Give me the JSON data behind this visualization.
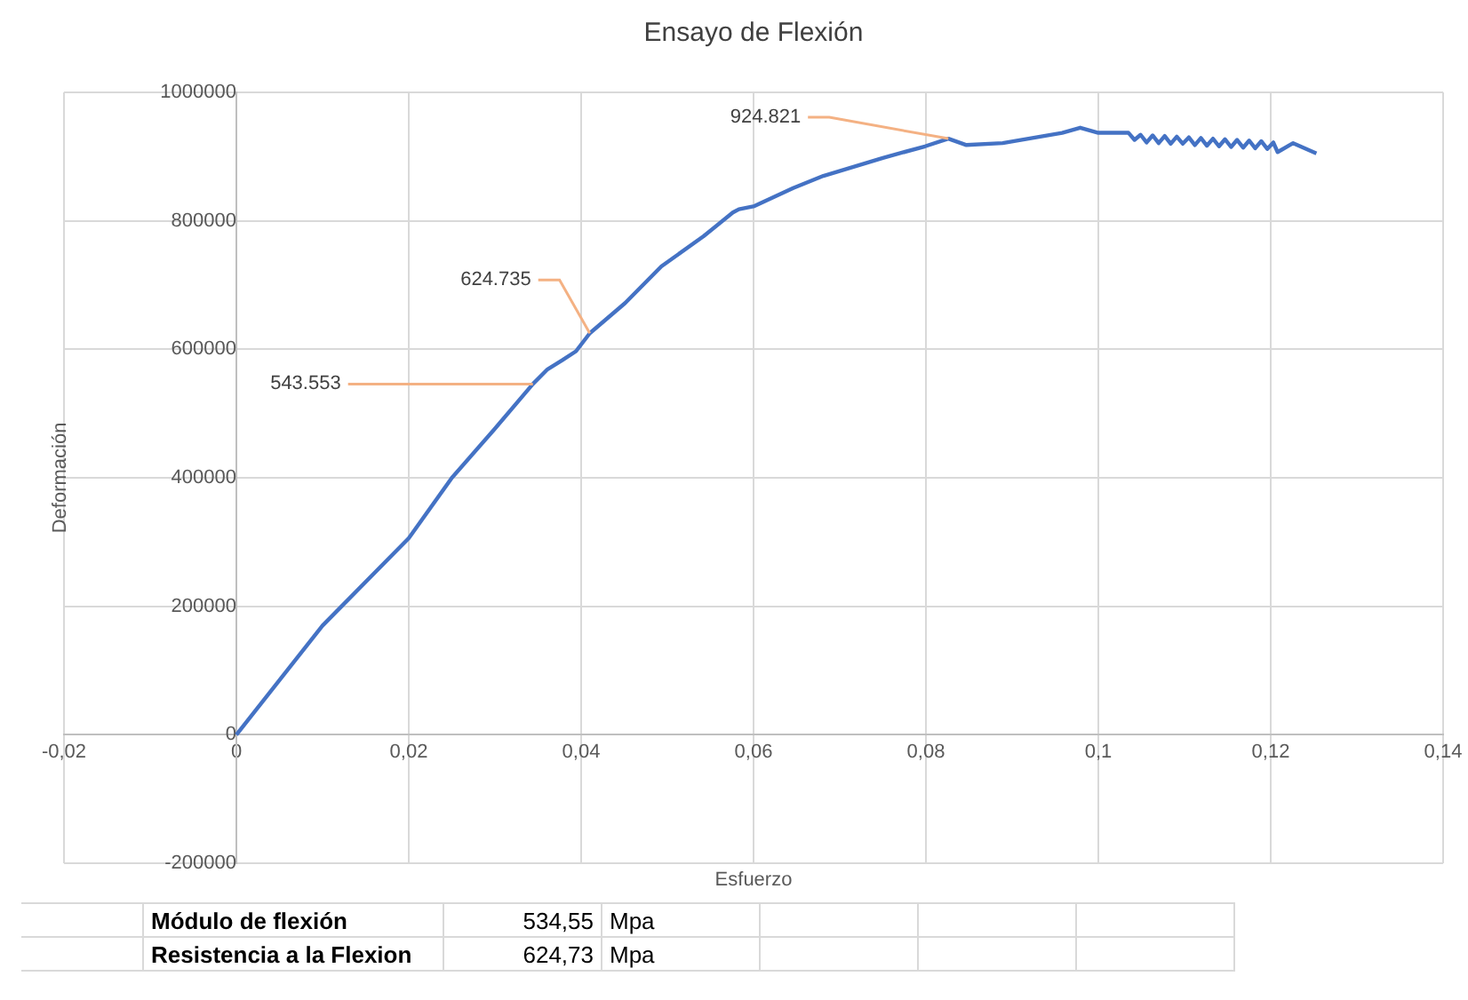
{
  "chart_data": {
    "type": "line",
    "title": "Ensayo de Flexión",
    "xlabel": "Esfuerzo",
    "ylabel": "Deformación",
    "x": [
      0,
      0.01,
      0.02,
      0.025,
      0.0299,
      0.0344,
      0.0361,
      0.0378,
      0.0394,
      0.041,
      0.0451,
      0.0493,
      0.0542,
      0.0576,
      0.0583,
      0.0601,
      0.0646,
      0.0681,
      0.075,
      0.0799,
      0.0826,
      0.0847,
      0.0889,
      0.0958,
      0.0979,
      0.1,
      0.1035,
      0.1042,
      0.1049,
      0.1056,
      0.1063,
      0.107,
      0.1077,
      0.1084,
      0.1091,
      0.1098,
      0.1105,
      0.1112,
      0.1119,
      0.1126,
      0.1133,
      0.114,
      0.1147,
      0.1154,
      0.1161,
      0.1168,
      0.1175,
      0.1182,
      0.1189,
      0.1196,
      0.1203,
      0.1208,
      0.1226,
      0.1253
    ],
    "series": [
      {
        "color": "#4472c4",
        "values": [
          0,
          170000,
          306000,
          400000,
          475000,
          546000,
          569000,
          583000,
          597000,
          625000,
          672000,
          729000,
          776000,
          813000,
          818000,
          823000,
          851000,
          870000,
          898000,
          916000,
          928000,
          918000,
          921000,
          937000,
          945000,
          937000,
          937000,
          926000,
          934000,
          922000,
          933000,
          921000,
          932000,
          920000,
          931000,
          920000,
          930000,
          918000,
          929000,
          917000,
          928000,
          916000,
          927000,
          915000,
          926000,
          914000,
          925000,
          913000,
          924000,
          912000,
          922000,
          907000,
          921000,
          905000
        ]
      }
    ],
    "xlim": [
      -0.02,
      0.14
    ],
    "xticks": [
      {
        "value": -0.02,
        "label": "-0,02"
      },
      0,
      {
        "value": 0.02,
        "label": "0,02"
      },
      {
        "value": 0.04,
        "label": "0,04"
      },
      {
        "value": 0.06,
        "label": "0,06"
      },
      {
        "value": 0.08,
        "label": "0,08"
      },
      {
        "value": 0.1,
        "label": "0,1"
      },
      {
        "value": 0.12,
        "label": "0,12"
      },
      {
        "value": 0.14,
        "label": "0,14"
      }
    ],
    "ylim": [
      -200000,
      1000000
    ],
    "yticks": [
      -200000,
      0,
      200000,
      400000,
      600000,
      800000,
      1000000
    ],
    "grid": true,
    "marker": "none",
    "line_style": "solid",
    "annotations": [
      {
        "text": "543.553",
        "x": 0.0344,
        "y": 546000
      },
      {
        "text": "624.735",
        "x": 0.041,
        "y": 625000
      },
      {
        "text": "924.821",
        "x": 0.0826,
        "y": 928000
      },
      "Módulo de flexión",
      "534,55",
      "Mpa",
      "Resistencia a la Flexion",
      "624,73",
      "Mpa"
    ]
  }
}
